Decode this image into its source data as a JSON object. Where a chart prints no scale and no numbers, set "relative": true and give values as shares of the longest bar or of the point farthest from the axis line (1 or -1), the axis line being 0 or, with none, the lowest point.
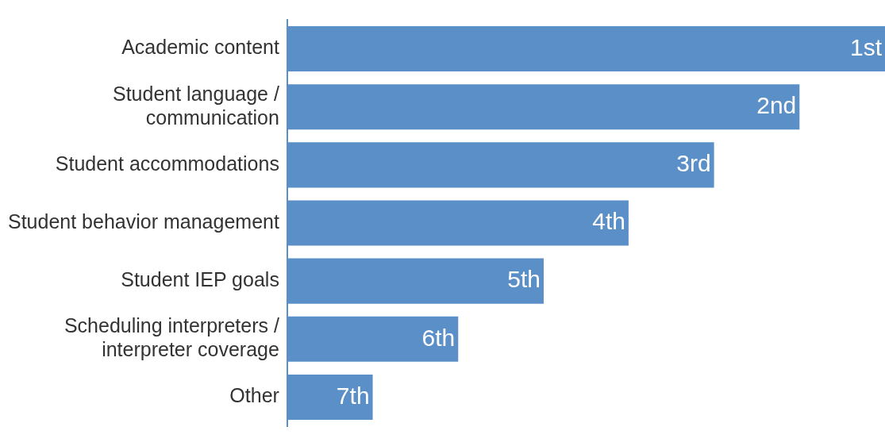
{
  "chart_data": {
    "type": "bar",
    "orientation": "horizontal",
    "relative": true,
    "categories": [
      "Academic content",
      "Student language / communication",
      "Student accommodations",
      "Student behavior management",
      "Student IEP goals",
      "Scheduling interpreters / interpreter coverage",
      "Other"
    ],
    "values": [
      1,
      0.857,
      0.714,
      0.571,
      0.429,
      0.286,
      0.143
    ],
    "color": "#5b8fc7",
    "annotations": [
      {
        "text": "1st",
        "y": "Academic content"
      },
      {
        "text": "2nd",
        "y": "Student language / communication"
      },
      {
        "text": "3rd",
        "y": "Student accommodations"
      },
      {
        "text": "4th",
        "y": "Student behavior management"
      },
      {
        "text": "5th",
        "y": "Student IEP goals"
      },
      {
        "text": "6th",
        "y": "Scheduling interpreters / interpreter coverage"
      },
      {
        "text": "7th",
        "y": "Other"
      }
    ]
  }
}
